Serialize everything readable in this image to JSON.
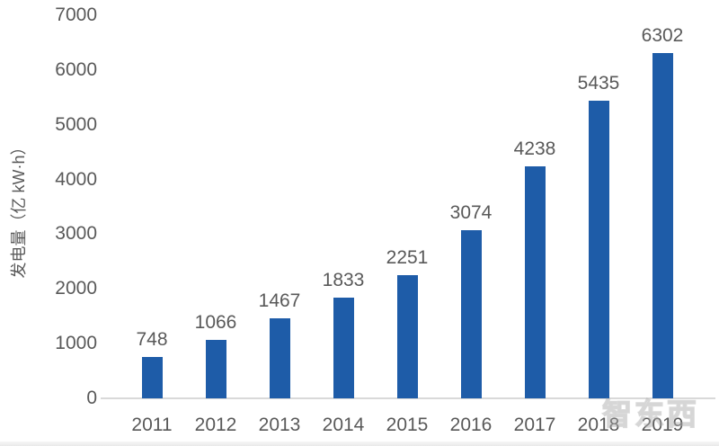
{
  "chart_data": {
    "type": "bar",
    "categories": [
      "2011",
      "2012",
      "2013",
      "2014",
      "2015",
      "2016",
      "2017",
      "2018",
      "2019"
    ],
    "values": [
      748,
      1066,
      1467,
      1833,
      2251,
      3074,
      4238,
      5435,
      6302
    ],
    "title": "",
    "xlabel": "",
    "ylabel": "发电量（亿 kW·h）",
    "ylim": [
      0,
      7000
    ],
    "ytick_interval": 1000,
    "yticks": [
      0,
      1000,
      2000,
      3000,
      4000,
      5000,
      6000,
      7000
    ],
    "grid": false,
    "legend": "none",
    "data_labels": true,
    "bar_color": "#1e5ca8",
    "text_color": "#595959",
    "axis_line_color": "#d9d9d9"
  },
  "watermark": {
    "text": "智东西"
  }
}
